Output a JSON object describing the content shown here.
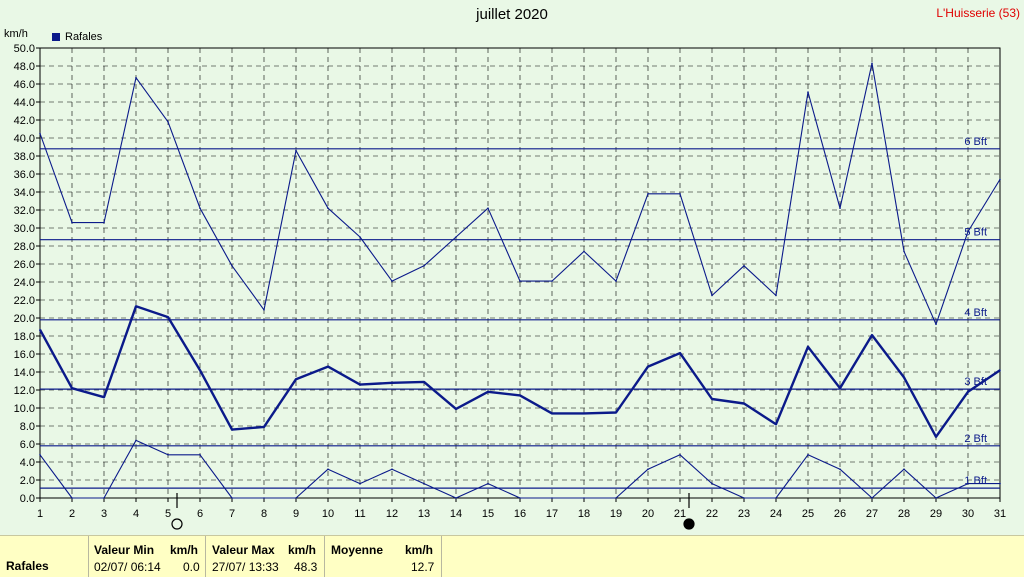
{
  "title": "juillet 2020",
  "station": "L'Huisserie (53)",
  "unit": "km/h",
  "legend": "Rafales",
  "colors": {
    "background": "#e9f8e6",
    "series": "#0b1a8a",
    "grid": "#000000",
    "station": "#e00000",
    "footer": "#ffffc4"
  },
  "moon_icons": [
    "full-moon-icon",
    "new-moon-icon"
  ],
  "footer": {
    "row_label": "Rafales",
    "min": {
      "label": "Valeur Min",
      "unit": "km/h",
      "date": "02/07/  06:14",
      "value": "0.0"
    },
    "max": {
      "label": "Valeur Max",
      "unit": "km/h",
      "date": "27/07/  13:33",
      "value": "48.3"
    },
    "avg": {
      "label": "Moyenne",
      "unit": "km/h",
      "value": "12.7"
    }
  },
  "chart_data": {
    "type": "line",
    "title": "juillet 2020",
    "ylabel": "km/h",
    "ylim": [
      0,
      50
    ],
    "xlim": [
      1,
      31
    ],
    "x": [
      1,
      2,
      3,
      4,
      5,
      6,
      7,
      8,
      9,
      10,
      11,
      12,
      13,
      14,
      15,
      16,
      17,
      18,
      19,
      20,
      21,
      22,
      23,
      24,
      25,
      26,
      27,
      28,
      29,
      30,
      31
    ],
    "yticks": [
      "0.0",
      "2.0",
      "4.0",
      "6.0",
      "8.0",
      "10.0",
      "12.0",
      "14.0",
      "16.0",
      "18.0",
      "20.0",
      "22.0",
      "24.0",
      "26.0",
      "28.0",
      "30.0",
      "32.0",
      "34.0",
      "36.0",
      "38.0",
      "40.0",
      "42.0",
      "44.0",
      "46.0",
      "48.0",
      "50.0"
    ],
    "xticks": [
      "1",
      "2",
      "3",
      "4",
      "5",
      "6",
      "7",
      "8",
      "9",
      "10",
      "11",
      "12",
      "13",
      "14",
      "15",
      "16",
      "17",
      "18",
      "19",
      "20",
      "21",
      "22",
      "23",
      "24",
      "25",
      "26",
      "27",
      "28",
      "29",
      "30",
      "31"
    ],
    "beaufort": [
      {
        "label": "1 Bft",
        "value": 1.1
      },
      {
        "label": "2 Bft",
        "value": 5.8
      },
      {
        "label": "3 Bft",
        "value": 12.1
      },
      {
        "label": "4 Bft",
        "value": 19.8
      },
      {
        "label": "5 Bft",
        "value": 28.7
      },
      {
        "label": "6 Bft",
        "value": 38.8
      }
    ],
    "moon_markers": [
      5,
      21
    ],
    "series": [
      {
        "role": "max",
        "values": [
          40.5,
          30.6,
          30.6,
          46.7,
          41.8,
          32.2,
          25.8,
          20.9,
          38.6,
          32.2,
          29.0,
          24.1,
          25.8,
          29.0,
          32.2,
          24.1,
          24.1,
          27.4,
          24.1,
          33.8,
          33.8,
          22.5,
          25.8,
          22.5,
          45.1,
          32.2,
          48.3,
          27.4,
          19.3,
          29.6,
          35.4
        ]
      },
      {
        "role": "mean",
        "values": [
          18.7,
          12.2,
          11.2,
          21.3,
          20.1,
          14.2,
          7.6,
          7.9,
          13.2,
          14.6,
          12.6,
          12.8,
          12.9,
          9.9,
          11.8,
          11.4,
          9.4,
          9.4,
          9.5,
          14.6,
          16.1,
          11.0,
          10.5,
          8.2,
          16.8,
          12.2,
          18.1,
          13.4,
          6.8,
          11.8,
          14.2
        ]
      },
      {
        "role": "min",
        "values": [
          4.8,
          0.0,
          0.0,
          6.4,
          4.8,
          4.8,
          0.0,
          0.0,
          0.0,
          3.2,
          1.6,
          3.2,
          1.6,
          0.0,
          1.6,
          0.0,
          0.0,
          0.0,
          0.0,
          3.2,
          4.8,
          1.6,
          0.0,
          0.0,
          4.8,
          3.2,
          0.0,
          3.2,
          0.0,
          1.6,
          1.6
        ]
      }
    ]
  }
}
